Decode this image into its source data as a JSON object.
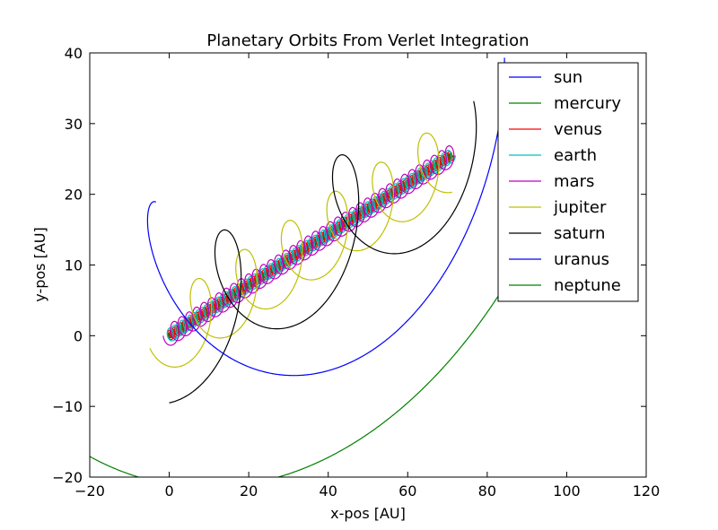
{
  "chart_data": {
    "type": "line",
    "title": "Planetary Orbits From Verlet Integration",
    "xlabel": "x-pos [AU]",
    "ylabel": "y-pos [AU]",
    "xlim": [
      -20,
      120
    ],
    "ylim": [
      -20,
      40
    ],
    "xticks": [
      -20,
      0,
      20,
      40,
      60,
      80,
      100,
      120
    ],
    "yticks": [
      -20,
      -10,
      0,
      10,
      20,
      30,
      40
    ],
    "xtick_labels": [
      "−20",
      "0",
      "20",
      "40",
      "60",
      "80",
      "100",
      "120"
    ],
    "ytick_labels": [
      "−20",
      "−10",
      "0",
      "10",
      "20",
      "30",
      "40"
    ],
    "grid": false,
    "legend_position": "top-right",
    "drift": {
      "start": [
        0,
        0
      ],
      "end": [
        71,
        25.5
      ]
    },
    "series": [
      {
        "name": "sun",
        "color": "#0000ff",
        "radius": 0,
        "turns": 0,
        "start_angle": 0
      },
      {
        "name": "mercury",
        "color": "#008000",
        "radius": 0.39,
        "turns": 300,
        "start_angle": 0
      },
      {
        "name": "venus",
        "color": "#ff0000",
        "radius": 0.72,
        "turns": 120,
        "start_angle": 0
      },
      {
        "name": "earth",
        "color": "#00bfbf",
        "radius": 1.0,
        "turns": 70,
        "start_angle": 0
      },
      {
        "name": "mars",
        "color": "#bf00bf",
        "radius": 1.52,
        "turns": 38,
        "start_angle": 180
      },
      {
        "name": "jupiter",
        "color": "#bfbf00",
        "radius": 5.2,
        "turns": 6.2,
        "start_angle": 200
      },
      {
        "name": "saturn",
        "color": "#000000",
        "radius": 9.5,
        "turns": 2.4,
        "start_angle": 270
      },
      {
        "name": "uranus",
        "color": "#0000ff",
        "radius": 19.2,
        "turns": 0.85,
        "start_angle": 100
      },
      {
        "name": "neptune",
        "color": "#008000",
        "radius": 30.0,
        "turns": 0.42,
        "start_angle": 210
      }
    ]
  }
}
